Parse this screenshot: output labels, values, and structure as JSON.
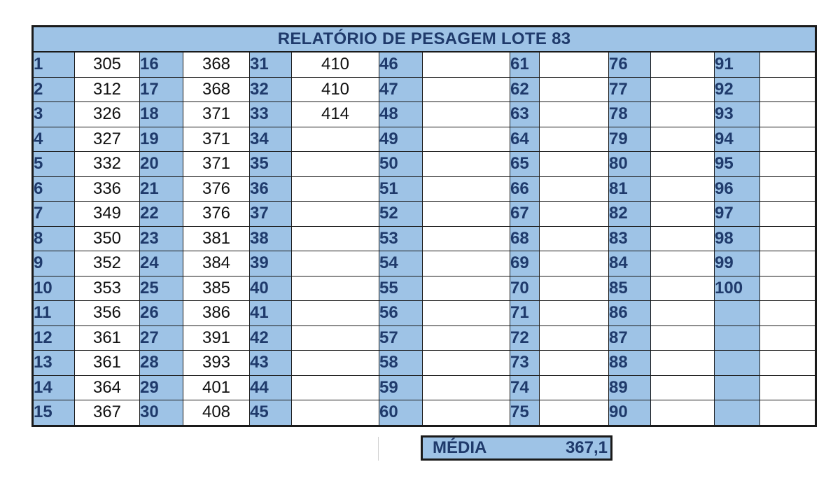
{
  "title": "RELATÓRIO DE PESAGEM LOTE 83",
  "columns": [
    {
      "start": 1,
      "values": [
        "305",
        "312",
        "326",
        "327",
        "332",
        "336",
        "349",
        "350",
        "352",
        "353",
        "356",
        "361",
        "361",
        "364",
        "367"
      ]
    },
    {
      "start": 16,
      "values": [
        "368",
        "368",
        "371",
        "371",
        "371",
        "376",
        "376",
        "381",
        "384",
        "385",
        "386",
        "391",
        "393",
        "401",
        "408"
      ]
    },
    {
      "start": 31,
      "values": [
        "410",
        "410",
        "414",
        "",
        "",
        "",
        "",
        "",
        "",
        "",
        "",
        "",
        "",
        "",
        ""
      ]
    },
    {
      "start": 46,
      "values": [
        "",
        "",
        "",
        "",
        "",
        "",
        "",
        "",
        "",
        "",
        "",
        "",
        "",
        "",
        ""
      ]
    },
    {
      "start": 61,
      "values": [
        "",
        "",
        "",
        "",
        "",
        "",
        "",
        "",
        "",
        "",
        "",
        "",
        "",
        "",
        ""
      ]
    },
    {
      "start": 76,
      "values": [
        "",
        "",
        "",
        "",
        "",
        "",
        "",
        "",
        "",
        "",
        "",
        "",
        "",
        "",
        ""
      ]
    },
    {
      "start": 91,
      "values": [
        "",
        "",
        "",
        "",
        "",
        "",
        "",
        "",
        "",
        "",
        "",
        "",
        "",
        "",
        ""
      ]
    }
  ],
  "summary": {
    "label": "MÉDIA",
    "value": "367,1"
  },
  "colors": {
    "header_fill": "#9ec3e6",
    "header_text": "#1f3a6b",
    "border": "#1a1a1a"
  }
}
